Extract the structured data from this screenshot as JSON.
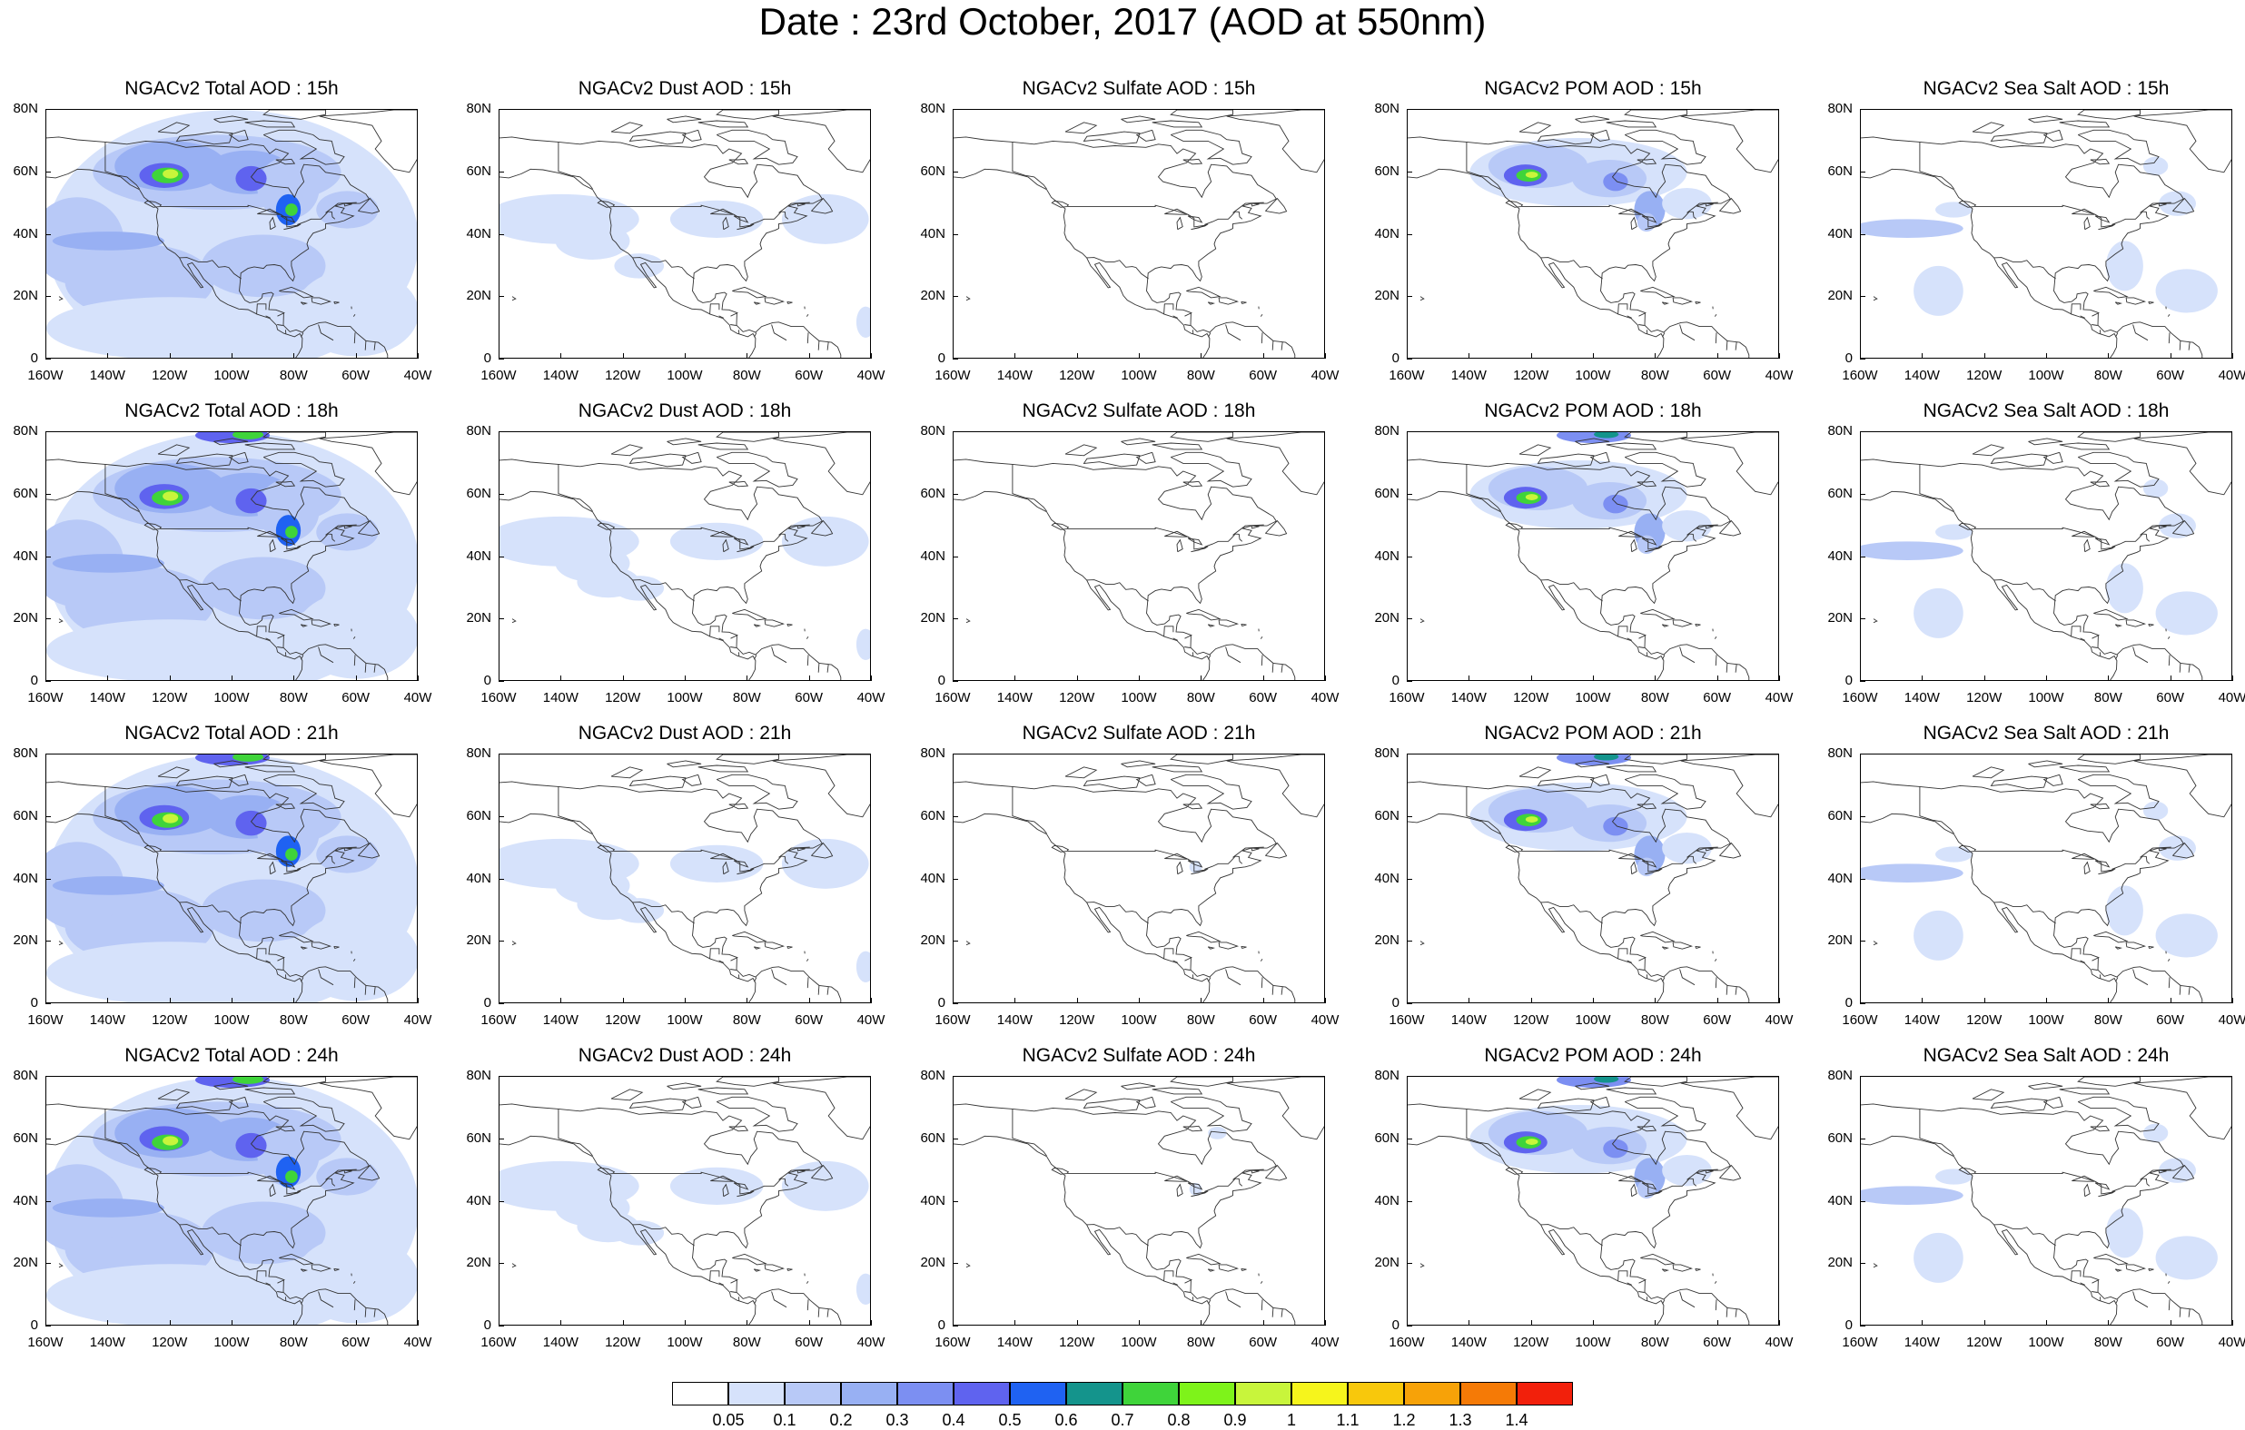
{
  "title": "Date : 23rd October, 2017 (AOD at 550nm)",
  "axes": {
    "x_ticks": [
      "160W",
      "140W",
      "120W",
      "100W",
      "80W",
      "60W",
      "40W"
    ],
    "y_ticks": [
      "80N",
      "60N",
      "40N",
      "20N",
      "0"
    ],
    "lon_range": [
      -160,
      -40
    ],
    "lat_range": [
      0,
      80
    ]
  },
  "panels": [
    {
      "title": "NGACv2 Total AOD : 15h",
      "species": "total",
      "hour": 15
    },
    {
      "title": "NGACv2 Dust AOD : 15h",
      "species": "dust",
      "hour": 15
    },
    {
      "title": "NGACv2 Sulfate AOD : 15h",
      "species": "sulfate",
      "hour": 15
    },
    {
      "title": "NGACv2 POM AOD : 15h",
      "species": "pom",
      "hour": 15
    },
    {
      "title": "NGACv2 Sea Salt AOD : 15h",
      "species": "seasalt",
      "hour": 15
    },
    {
      "title": "NGACv2 Total AOD : 18h",
      "species": "total",
      "hour": 18
    },
    {
      "title": "NGACv2 Dust AOD : 18h",
      "species": "dust",
      "hour": 18
    },
    {
      "title": "NGACv2 Sulfate AOD : 18h",
      "species": "sulfate",
      "hour": 18
    },
    {
      "title": "NGACv2 POM AOD : 18h",
      "species": "pom",
      "hour": 18
    },
    {
      "title": "NGACv2 Sea Salt AOD : 18h",
      "species": "seasalt",
      "hour": 18
    },
    {
      "title": "NGACv2 Total AOD : 21h",
      "species": "total",
      "hour": 21
    },
    {
      "title": "NGACv2 Dust AOD : 21h",
      "species": "dust",
      "hour": 21
    },
    {
      "title": "NGACv2 Sulfate AOD : 21h",
      "species": "sulfate",
      "hour": 21
    },
    {
      "title": "NGACv2 POM AOD : 21h",
      "species": "pom",
      "hour": 21
    },
    {
      "title": "NGACv2 Sea Salt AOD : 21h",
      "species": "seasalt",
      "hour": 21
    },
    {
      "title": "NGACv2 Total AOD : 24h",
      "species": "total",
      "hour": 24
    },
    {
      "title": "NGACv2 Dust AOD : 24h",
      "species": "dust",
      "hour": 24
    },
    {
      "title": "NGACv2 Sulfate AOD : 24h",
      "species": "sulfate",
      "hour": 24
    },
    {
      "title": "NGACv2 POM AOD : 24h",
      "species": "pom",
      "hour": 24
    },
    {
      "title": "NGACv2 Sea Salt  AOD : 24h",
      "species": "seasalt",
      "hour": 24
    }
  ],
  "colorbar": {
    "labels": [
      "0.05",
      "0.1",
      "0.2",
      "0.3",
      "0.4",
      "0.5",
      "0.6",
      "0.7",
      "0.8",
      "0.9",
      "1",
      "1.1",
      "1.2",
      "1.3",
      "1.4"
    ],
    "colors": [
      "#ffffff",
      "#d6e2fb",
      "#b8c9f7",
      "#98b0f3",
      "#7c8ff2",
      "#5f63ef",
      "#1f62f2",
      "#14948c",
      "#3fd43a",
      "#7ef31a",
      "#c8f53b",
      "#f6f51c",
      "#f8c80c",
      "#f7a208",
      "#f57a06",
      "#f2200b"
    ]
  },
  "chart_data": {
    "type": "heatmap",
    "title": "Date : 23rd October, 2017 (AOD at 550nm)",
    "xlabel": "",
    "ylabel": "",
    "xlim": [
      -160,
      -40
    ],
    "ylim": [
      0,
      80
    ],
    "colorbar_levels": [
      0.05,
      0.1,
      0.2,
      0.3,
      0.4,
      0.5,
      0.6,
      0.7,
      0.8,
      0.9,
      1,
      1.1,
      1.2,
      1.3,
      1.4
    ],
    "panels": [
      {
        "species": "Total",
        "hours": [
          15,
          18,
          21,
          24
        ]
      },
      {
        "species": "Dust",
        "hours": [
          15,
          18,
          21,
          24
        ]
      },
      {
        "species": "Sulfate",
        "hours": [
          15,
          18,
          21,
          24
        ]
      },
      {
        "species": "POM",
        "hours": [
          15,
          18,
          21,
          24
        ]
      },
      {
        "species": "Sea Salt",
        "hours": [
          15,
          18,
          21,
          24
        ]
      }
    ]
  }
}
